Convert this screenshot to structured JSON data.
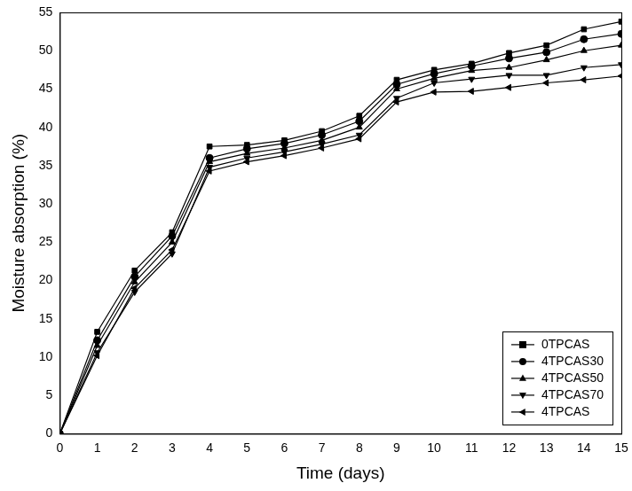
{
  "chart_data": {
    "type": "line",
    "x_label": "Time (days)",
    "y_label": "Moisture absorption (%)",
    "x": [
      0,
      1,
      2,
      3,
      4,
      5,
      6,
      7,
      8,
      9,
      10,
      11,
      12,
      13,
      14,
      15
    ],
    "series": [
      {
        "name": "0TPCAS",
        "color": "#000000",
        "marker": "square",
        "line_style": "solid",
        "values": [
          0,
          13.3,
          21.3,
          26.3,
          37.5,
          37.7,
          38.3,
          39.5,
          41.5,
          46.2,
          47.5,
          48.3,
          49.7,
          50.7,
          52.8,
          53.8
        ]
      },
      {
        "name": "4TPCAS30",
        "color": "#000000",
        "marker": "circle",
        "line_style": "solid",
        "values": [
          0,
          12.2,
          20.5,
          25.8,
          36.0,
          37.2,
          37.9,
          39.0,
          40.8,
          45.6,
          47.0,
          48.0,
          49.0,
          49.8,
          51.5,
          52.2
        ]
      },
      {
        "name": "4TPCAS50",
        "color": "#000000",
        "marker": "triangle",
        "line_style": "solid",
        "values": [
          0,
          11.5,
          19.8,
          25.0,
          35.5,
          36.6,
          37.3,
          38.3,
          40.0,
          45.0,
          46.4,
          47.4,
          47.8,
          48.8,
          50.0,
          50.7
        ]
      },
      {
        "name": "4TPCAS70",
        "color": "#000000",
        "marker": "triangle_down",
        "line_style": "solid",
        "values": [
          0,
          10.6,
          18.5,
          23.5,
          34.8,
          36.0,
          36.8,
          37.8,
          39.0,
          43.8,
          45.8,
          46.3,
          46.8,
          46.8,
          47.8,
          48.2
        ]
      },
      {
        "name": "4TPCAS",
        "color": "#000000",
        "marker": "triangle_left",
        "line_style": "solid",
        "values": [
          0,
          10.2,
          19.0,
          24.0,
          34.3,
          35.5,
          36.3,
          37.3,
          38.5,
          43.3,
          44.6,
          44.7,
          45.2,
          45.8,
          46.2,
          46.7
        ]
      }
    ],
    "xlim": [
      0,
      15
    ],
    "xticks": [
      0,
      1,
      2,
      3,
      4,
      5,
      6,
      7,
      8,
      9,
      10,
      11,
      12,
      13,
      14,
      15
    ],
    "ylim": [
      0,
      55
    ],
    "yticks": [
      0,
      5,
      10,
      15,
      20,
      25,
      30,
      35,
      40,
      45,
      50,
      55
    ],
    "grid": false,
    "legend": "lower right"
  }
}
